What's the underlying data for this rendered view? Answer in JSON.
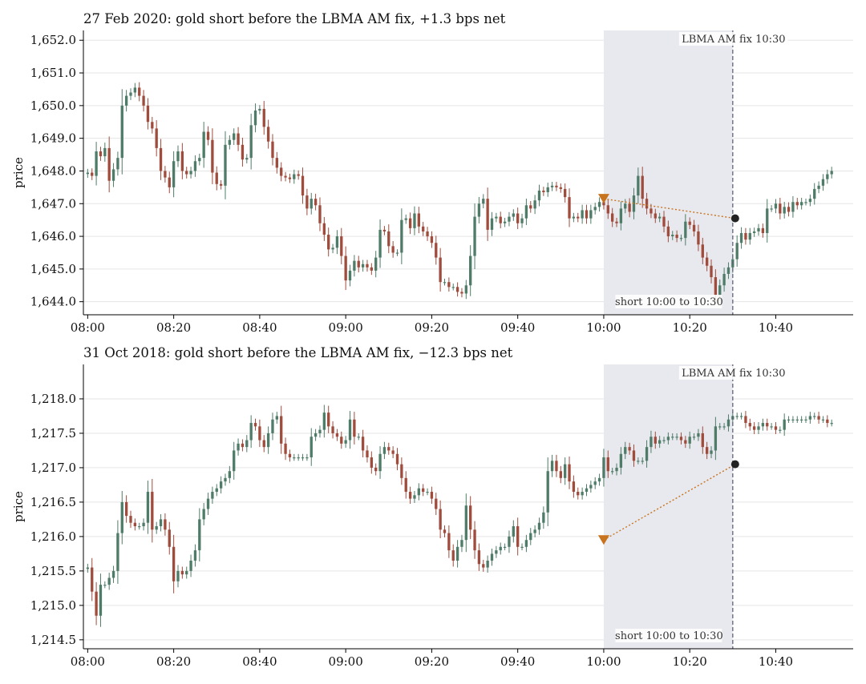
{
  "chart_data": [
    {
      "type": "candlestick",
      "title": "27 Feb 2020: gold short before the LBMA AM fix, +1.3 bps net",
      "ylabel": "price",
      "x_ticks": [
        "08:00",
        "08:20",
        "08:40",
        "09:00",
        "09:20",
        "09:40",
        "10:00",
        "10:20",
        "10:40"
      ],
      "y_ticks": [
        "1,644.0",
        "1,645.0",
        "1,646.0",
        "1,647.0",
        "1,648.0",
        "1,649.0",
        "1,650.0",
        "1,651.0",
        "1,652.0"
      ],
      "y_tick_values": [
        1644.0,
        1645.0,
        1646.0,
        1647.0,
        1648.0,
        1649.0,
        1650.0,
        1651.0,
        1652.0
      ],
      "xlim": [
        "07:59",
        "10:58"
      ],
      "ylim": [
        1643.6,
        1652.3
      ],
      "shaded_window": [
        "10:00",
        "10:30"
      ],
      "fix_line": "10:30",
      "fix_label": "LBMA AM fix 10:30",
      "window_label": "short 10:00 to 10:30",
      "entry": {
        "time": "10:00",
        "price": 1647.15
      },
      "exit": {
        "time": "10:30",
        "price": 1646.55
      },
      "candles_1min_start": "08:00",
      "close": [
        1647.95,
        1647.85,
        1648.6,
        1648.45,
        1648.7,
        1647.7,
        1648.05,
        1648.4,
        1650.0,
        1650.3,
        1650.4,
        1650.55,
        1650.3,
        1650.0,
        1649.5,
        1649.3,
        1648.7,
        1648.0,
        1647.8,
        1647.5,
        1648.3,
        1648.6,
        1648.0,
        1647.9,
        1648.0,
        1648.3,
        1648.4,
        1649.2,
        1648.95,
        1647.95,
        1647.6,
        1647.55,
        1648.8,
        1648.95,
        1649.15,
        1648.8,
        1648.35,
        1648.4,
        1649.4,
        1649.85,
        1649.9,
        1649.35,
        1648.9,
        1648.4,
        1648.1,
        1647.85,
        1647.8,
        1647.75,
        1647.9,
        1647.85,
        1647.25,
        1646.85,
        1647.15,
        1646.95,
        1646.4,
        1646.05,
        1645.6,
        1645.65,
        1646.0,
        1645.4,
        1644.65,
        1644.95,
        1645.25,
        1645.05,
        1645.15,
        1645.05,
        1644.95,
        1645.35,
        1646.2,
        1646.15,
        1645.7,
        1645.5,
        1645.5,
        1646.5,
        1646.55,
        1646.25,
        1646.7,
        1646.3,
        1646.15,
        1646.0,
        1645.8,
        1645.35,
        1644.6,
        1644.6,
        1644.45,
        1644.45,
        1644.3,
        1644.25,
        1644.5,
        1645.4,
        1646.6,
        1647.0,
        1647.15,
        1646.2,
        1646.55,
        1646.6,
        1646.4,
        1646.45,
        1646.6,
        1646.7,
        1646.4,
        1646.55,
        1646.95,
        1646.85,
        1647.1,
        1647.4,
        1647.35,
        1647.5,
        1647.55,
        1647.5,
        1647.45,
        1647.2,
        1646.55,
        1646.6,
        1646.55,
        1646.8,
        1646.55,
        1646.8,
        1646.9,
        1647.05,
        1646.95,
        1646.7,
        1646.45,
        1646.4,
        1646.85,
        1647.0,
        1646.75,
        1647.25,
        1647.85,
        1647.15,
        1646.85,
        1646.7,
        1646.55,
        1646.6,
        1646.3,
        1646.0,
        1646.05,
        1645.95,
        1645.95,
        1646.45,
        1646.35,
        1646.15,
        1645.75,
        1645.35,
        1645.1,
        1644.75,
        1644.2,
        1644.5,
        1644.85,
        1645.05,
        1645.3,
        1645.8,
        1646.1,
        1645.9,
        1646.1,
        1646.15,
        1646.25,
        1646.1,
        1646.85,
        1646.85,
        1647.0,
        1646.7,
        1646.9,
        1646.75,
        1647.05,
        1646.95,
        1647.05,
        1647.05,
        1647.15,
        1647.45,
        1647.55,
        1647.75,
        1647.9,
        1648.0
      ]
    },
    {
      "type": "candlestick",
      "title": "31 Oct 2018: gold short before the LBMA AM fix, −12.3 bps net",
      "ylabel": "price",
      "x_ticks": [
        "08:00",
        "08:20",
        "08:40",
        "09:00",
        "09:20",
        "09:40",
        "10:00",
        "10:20",
        "10:40"
      ],
      "y_ticks": [
        "1,214.5",
        "1,215.0",
        "1,215.5",
        "1,216.0",
        "1,216.5",
        "1,217.0",
        "1,217.5",
        "1,218.0"
      ],
      "y_tick_values": [
        1214.5,
        1215.0,
        1215.5,
        1216.0,
        1216.5,
        1217.0,
        1217.5,
        1218.0
      ],
      "xlim": [
        "07:59",
        "10:58"
      ],
      "ylim": [
        1214.37,
        1218.5
      ],
      "shaded_window": [
        "10:00",
        "10:30"
      ],
      "fix_line": "10:30",
      "fix_label": "LBMA AM fix 10:30",
      "window_label": "short 10:00 to 10:30",
      "entry": {
        "time": "10:00",
        "price": 1215.95
      },
      "exit": {
        "time": "10:30",
        "price": 1217.05
      },
      "candles_1min_start": "08:00",
      "close": [
        1215.55,
        1215.2,
        1214.85,
        1215.3,
        1215.3,
        1215.4,
        1215.5,
        1216.05,
        1216.5,
        1216.3,
        1216.2,
        1216.15,
        1216.15,
        1216.2,
        1216.65,
        1216.1,
        1216.15,
        1216.25,
        1216.1,
        1215.85,
        1215.35,
        1215.5,
        1215.45,
        1215.5,
        1215.65,
        1215.8,
        1216.25,
        1216.4,
        1216.55,
        1216.65,
        1216.7,
        1216.8,
        1216.85,
        1216.95,
        1217.25,
        1217.35,
        1217.3,
        1217.4,
        1217.65,
        1217.6,
        1217.4,
        1217.3,
        1217.5,
        1217.7,
        1217.75,
        1217.35,
        1217.2,
        1217.15,
        1217.15,
        1217.15,
        1217.15,
        1217.15,
        1217.45,
        1217.5,
        1217.55,
        1217.8,
        1217.6,
        1217.5,
        1217.45,
        1217.35,
        1217.4,
        1217.7,
        1217.45,
        1217.45,
        1217.25,
        1217.15,
        1217.0,
        1216.95,
        1217.2,
        1217.3,
        1217.25,
        1217.2,
        1217.05,
        1216.85,
        1216.65,
        1216.55,
        1216.6,
        1216.7,
        1216.65,
        1216.65,
        1216.55,
        1216.4,
        1216.1,
        1216.05,
        1215.8,
        1215.65,
        1215.85,
        1215.95,
        1216.45,
        1216.1,
        1215.8,
        1215.6,
        1215.55,
        1215.65,
        1215.75,
        1215.8,
        1215.85,
        1215.85,
        1216.0,
        1216.15,
        1215.85,
        1215.85,
        1215.95,
        1216.05,
        1216.1,
        1216.2,
        1216.35,
        1216.95,
        1217.1,
        1216.95,
        1216.85,
        1217.05,
        1216.8,
        1216.65,
        1216.6,
        1216.65,
        1216.7,
        1216.75,
        1216.8,
        1216.85,
        1217.15,
        1216.95,
        1216.95,
        1217.0,
        1217.2,
        1217.3,
        1217.25,
        1217.1,
        1217.1,
        1217.1,
        1217.3,
        1217.45,
        1217.35,
        1217.4,
        1217.4,
        1217.45,
        1217.45,
        1217.45,
        1217.4,
        1217.35,
        1217.45,
        1217.45,
        1217.5,
        1217.3,
        1217.2,
        1217.25,
        1217.6,
        1217.6,
        1217.6,
        1217.7,
        1217.75,
        1217.75,
        1217.75,
        1217.65,
        1217.6,
        1217.55,
        1217.6,
        1217.65,
        1217.6,
        1217.6,
        1217.55,
        1217.55,
        1217.7,
        1217.7,
        1217.7,
        1217.7,
        1217.7,
        1217.7,
        1217.75,
        1217.75,
        1217.7,
        1217.7,
        1217.65,
        1217.65
      ]
    }
  ],
  "colors": {
    "up": "#4f7c68",
    "down": "#a04c3d",
    "shade": "#e8e9ee",
    "fix_line": "#5d6478",
    "entry_marker": "#c8741f",
    "exit_marker": "#222222",
    "grid": "#e5e5e5",
    "axis": "#000000"
  }
}
